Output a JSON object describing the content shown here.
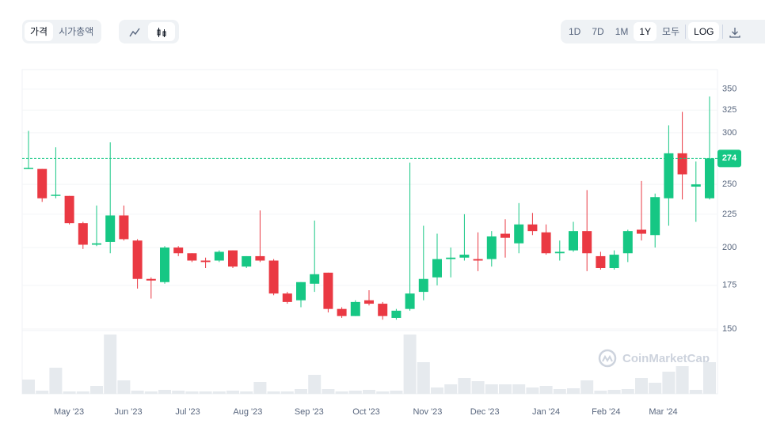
{
  "toolbar": {
    "tabs": [
      "가격",
      "시가총액"
    ],
    "ranges": [
      "1D",
      "7D",
      "1M",
      "1Y",
      "모두"
    ],
    "log_button": "LOG"
  },
  "watermark": "CoinMarketCap",
  "chart_data": {
    "type": "candlestick",
    "categories": [
      null,
      null,
      null,
      null,
      null,
      null,
      null,
      null,
      null,
      null,
      null,
      null,
      null,
      null,
      null,
      null,
      null,
      null,
      null,
      null,
      null,
      null,
      null,
      null,
      null,
      null,
      null,
      null,
      null,
      null,
      null,
      null,
      null,
      null,
      null,
      null,
      null,
      null,
      null,
      null,
      null,
      null,
      null,
      null,
      null,
      null,
      null,
      null,
      null,
      null,
      null
    ],
    "open": [
      265,
      264,
      240,
      240,
      218,
      202,
      204,
      224,
      205,
      179,
      177,
      200,
      196,
      191,
      191,
      198,
      187,
      194,
      191,
      170,
      166,
      176,
      183,
      161,
      157,
      166,
      164,
      156,
      161,
      171,
      180,
      192,
      193,
      192,
      192,
      210,
      203,
      217,
      211,
      196,
      198,
      212,
      194,
      186,
      196,
      213,
      209,
      238,
      279,
      248,
      238
    ],
    "high": [
      302,
      264,
      285,
      240,
      219,
      232,
      290,
      232,
      206,
      180,
      201,
      201,
      196,
      193,
      198,
      198,
      194,
      228,
      192,
      171,
      177,
      220,
      183,
      162,
      166,
      172,
      165,
      161,
      270,
      216,
      210,
      200,
      225,
      211,
      212,
      221,
      234,
      226,
      217,
      205,
      219,
      245,
      197,
      198,
      213,
      253,
      242,
      308,
      323,
      271,
      341
    ],
    "low": [
      264,
      235,
      238,
      217,
      199,
      201,
      196,
      205,
      173,
      167,
      176,
      194,
      190,
      186,
      190,
      186,
      186,
      190,
      169,
      164,
      162,
      171,
      159,
      156,
      157,
      163,
      155,
      155,
      160,
      166,
      175,
      180,
      191,
      184,
      187,
      193,
      196,
      209,
      195,
      191,
      197,
      184,
      185,
      185,
      190,
      205,
      200,
      216,
      237,
      219,
      237
    ],
    "close": [
      265,
      238,
      241,
      218,
      202,
      203,
      224,
      206,
      179,
      178,
      200,
      196,
      191,
      190,
      197,
      187,
      194,
      191,
      170,
      165,
      177,
      182,
      161,
      157,
      165,
      164,
      157,
      160,
      170,
      179,
      192,
      193,
      195,
      191,
      208,
      207,
      217,
      212,
      196,
      197,
      212,
      196,
      186,
      195,
      212,
      210,
      239,
      279,
      259,
      250,
      274
    ],
    "volume": [
      18,
      4,
      33,
      3,
      3,
      10,
      75,
      17,
      4,
      3,
      5,
      4,
      3,
      3,
      3,
      4,
      3,
      15,
      3,
      3,
      6,
      24,
      6,
      3,
      4,
      5,
      3,
      4,
      75,
      40,
      8,
      12,
      20,
      16,
      12,
      12,
      12,
      8,
      10,
      6,
      7,
      17,
      4,
      5,
      6,
      20,
      14,
      28,
      35,
      5,
      40
    ],
    "ylim": [
      150,
      375
    ],
    "yticks": [
      150,
      175,
      200,
      225,
      250,
      300,
      325,
      350
    ],
    "log_scale": true,
    "grid": true,
    "vlim": [
      0,
      78
    ],
    "xticks": [
      {
        "value": 2.97,
        "label": "May '23"
      },
      {
        "value": 7.33,
        "label": "Jun '23"
      },
      {
        "value": 11.69,
        "label": "Jul '23"
      },
      {
        "value": 16.1,
        "label": "Aug '23"
      },
      {
        "value": 20.6,
        "label": "Sep '23"
      },
      {
        "value": 24.8,
        "label": "Oct '23"
      },
      {
        "value": 29.3,
        "label": "Nov '23"
      },
      {
        "value": 33.5,
        "label": "Dec '23"
      },
      {
        "value": 38.0,
        "label": "Jan '24"
      },
      {
        "value": 42.4,
        "label": "Feb '24"
      },
      {
        "value": 46.6,
        "label": "Mar '24"
      }
    ],
    "current_price": 274,
    "up_color": "#16c784",
    "down_color": "#ea3943",
    "volume_color": "#e6eaee"
  }
}
